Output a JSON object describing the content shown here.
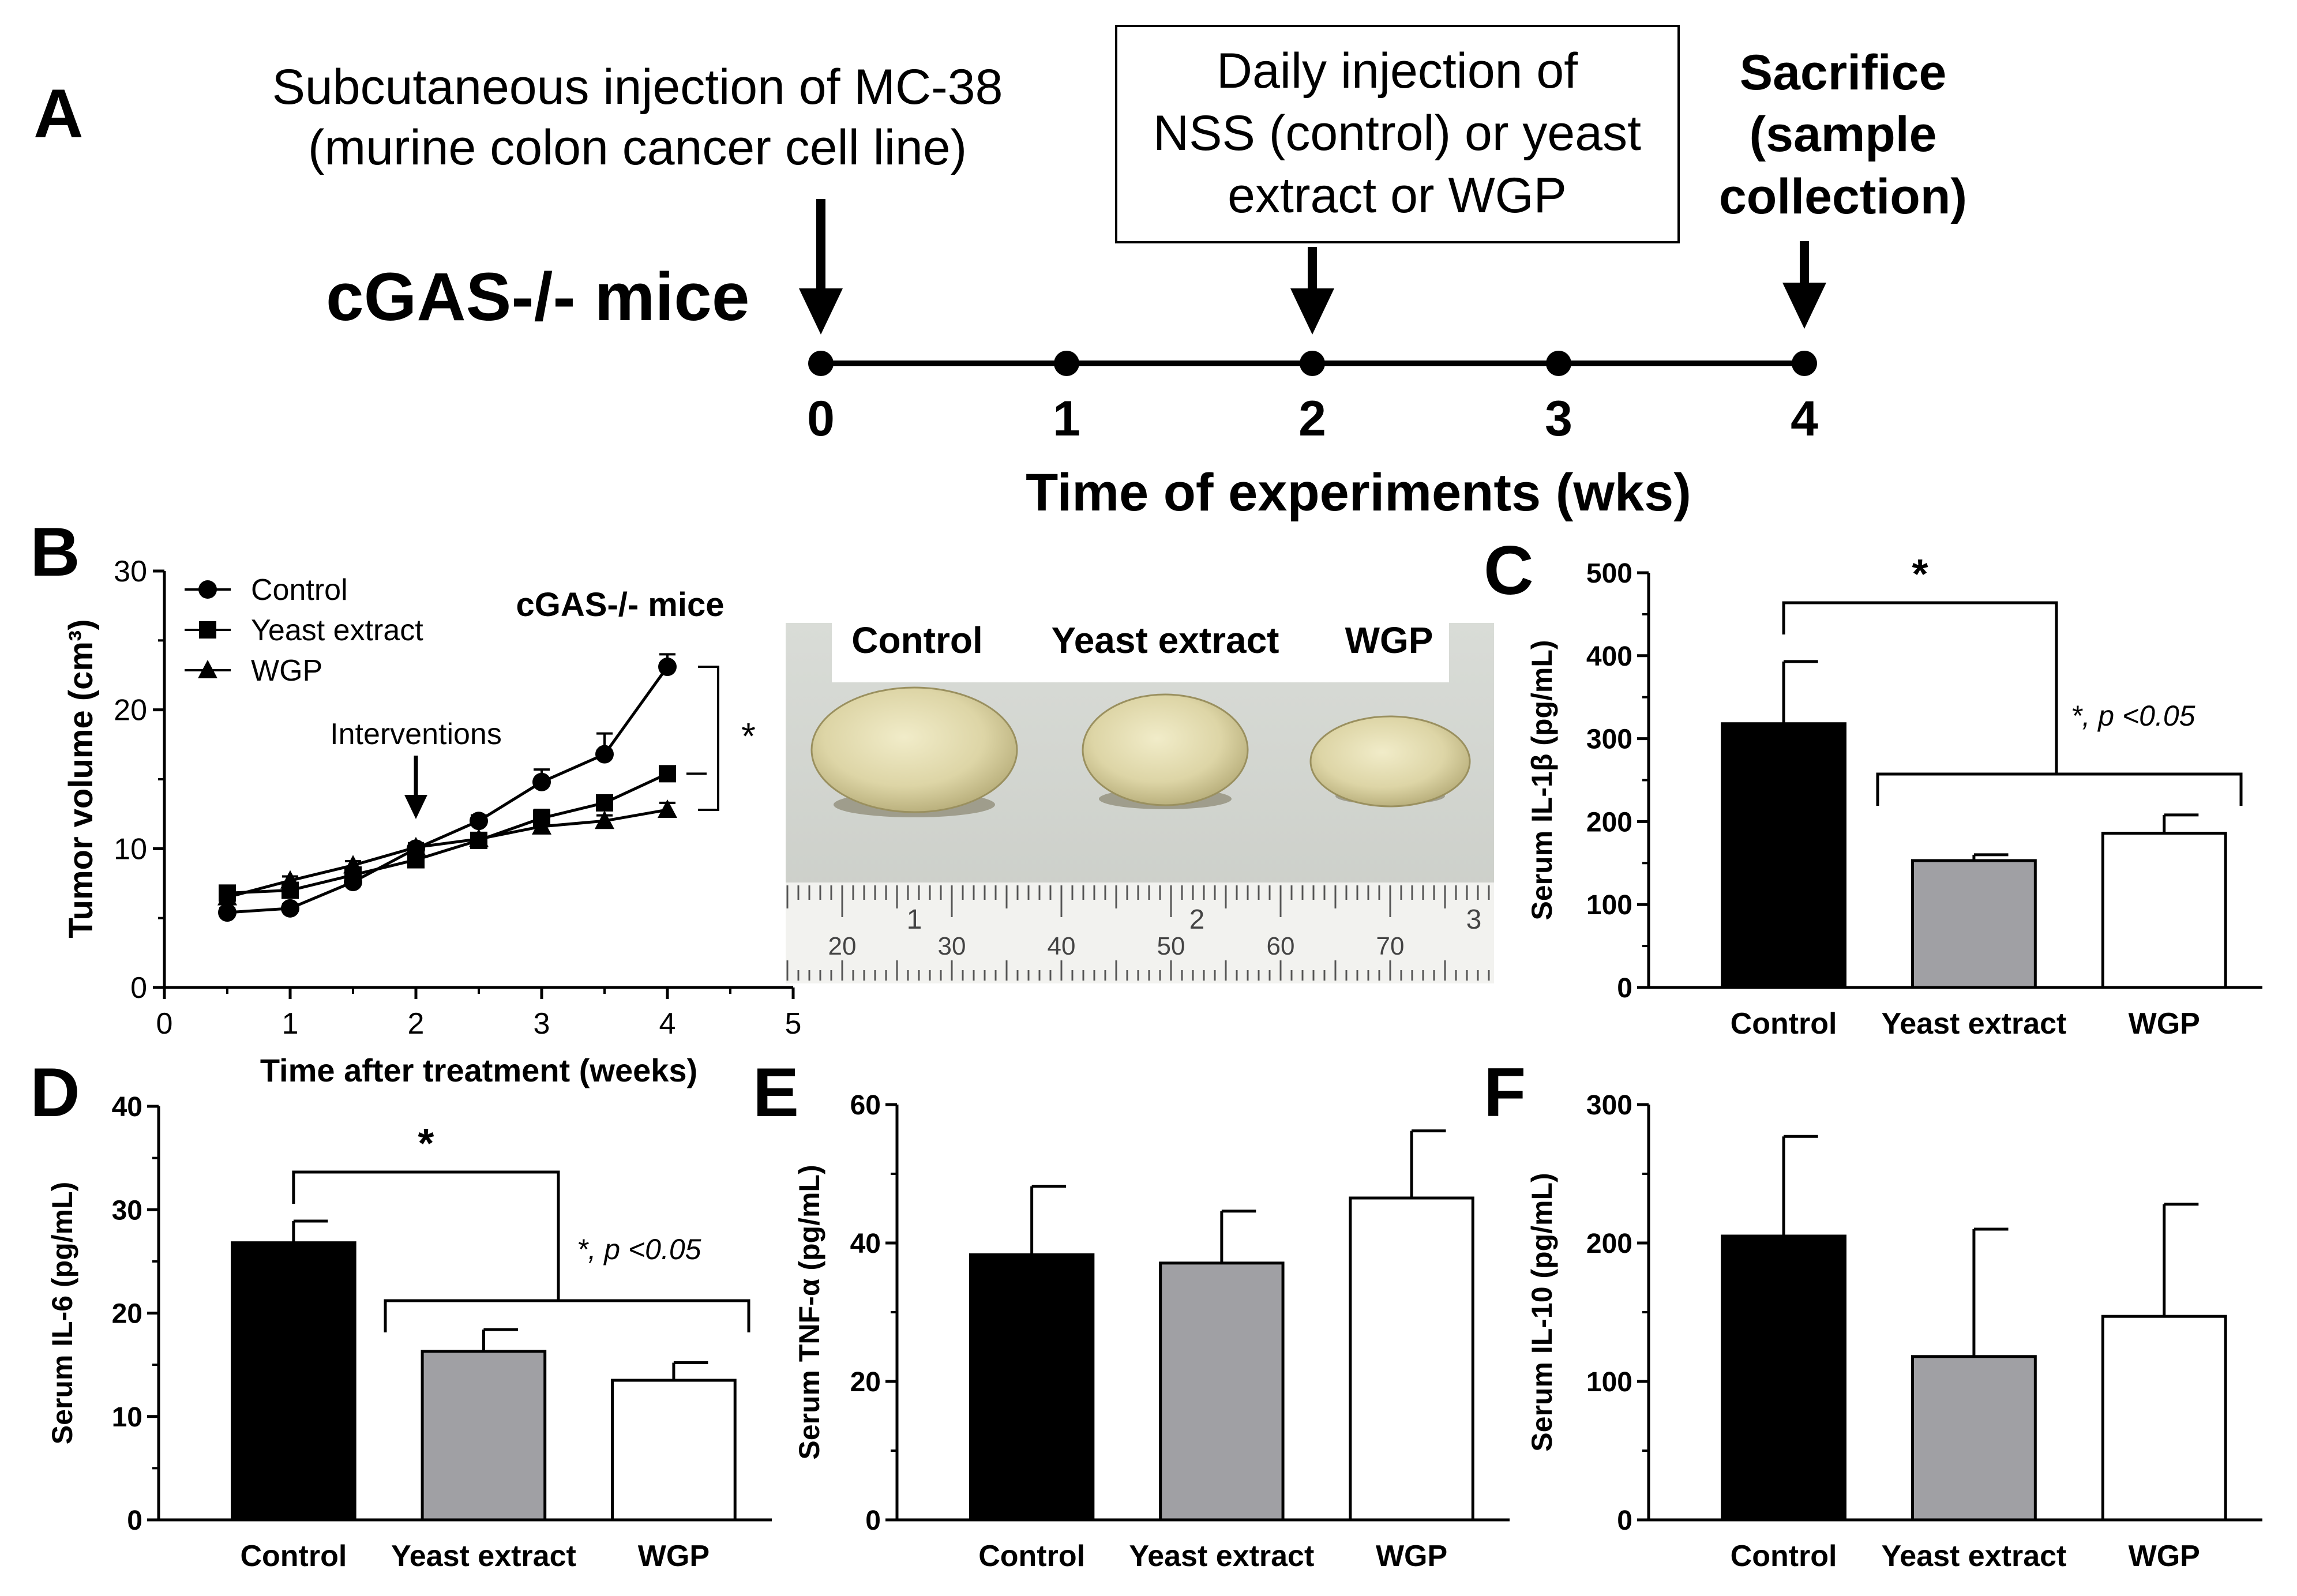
{
  "panels": {
    "A": "A",
    "B": "B",
    "C": "C",
    "D": "D",
    "E": "E",
    "F": "F"
  },
  "timeline": {
    "mouse_label": "cGAS-/- mice",
    "injection_text": [
      "Subcutaneous injection of MC-38",
      "(murine colon cancer cell line)"
    ],
    "daily_box_text": [
      "Daily injection of",
      "NSS (control) or yeast",
      "extract or WGP"
    ],
    "sacrifice_text": [
      "Sacrifice",
      "(sample",
      "collection)"
    ],
    "ticks": [
      "0",
      "1",
      "2",
      "3",
      "4"
    ],
    "axis_label": "Time of experiments (wks)"
  },
  "photo": {
    "labels": [
      "Control",
      "Yeast extract",
      "WGP"
    ],
    "ruler_numbers": [
      "20",
      "30",
      "40",
      "50",
      "60",
      "70"
    ],
    "ruler_big_digits": [
      "1",
      "2",
      "3"
    ]
  },
  "colors": {
    "control": "#000000",
    "yeast": "#a0a0a4",
    "wgp": "#ffffff"
  },
  "chart_data": [
    {
      "panel": "B",
      "type": "line",
      "title": "cGAS-/- mice",
      "xlabel": "Time after treatment (weeks)",
      "ylabel": "Tumor volume (cm³)",
      "xlim": [
        0,
        5
      ],
      "ylim": [
        0,
        30
      ],
      "xticks": [
        0,
        1,
        2,
        3,
        4,
        5
      ],
      "yticks": [
        0,
        10,
        20,
        30
      ],
      "annotation": "Interventions",
      "annotation_x": 2,
      "significance": "*",
      "series": [
        {
          "name": "Control",
          "marker": "circle",
          "x": [
            0.5,
            1,
            1.5,
            2,
            2.5,
            3,
            3.5,
            4
          ],
          "y": [
            5.4,
            5.7,
            7.6,
            10.0,
            12.0,
            14.8,
            16.8,
            23.1
          ],
          "err": [
            0.3,
            0.3,
            0.4,
            0.3,
            0.4,
            0.9,
            1.5,
            0.9
          ]
        },
        {
          "name": "Yeast extract",
          "marker": "square",
          "x": [
            0.5,
            1,
            1.5,
            2,
            2.5,
            3,
            3.5,
            4
          ],
          "y": [
            6.8,
            7.0,
            8.1,
            9.2,
            10.6,
            12.2,
            13.3,
            15.4
          ],
          "err": [
            0.3,
            0.3,
            0.3,
            0.3,
            0.3,
            0.6,
            0.5,
            0.5
          ]
        },
        {
          "name": "WGP",
          "marker": "triangle",
          "x": [
            0.5,
            1,
            1.5,
            2,
            2.5,
            3,
            3.5,
            4
          ],
          "y": [
            6.5,
            7.7,
            8.8,
            10.1,
            10.7,
            11.6,
            12.0,
            12.8
          ],
          "err": [
            0.3,
            0.3,
            0.3,
            0.3,
            0.3,
            0.5,
            0.4,
            0.5
          ]
        }
      ]
    },
    {
      "panel": "C",
      "type": "bar",
      "ylabel": "Serum IL-1β (pg/mL)",
      "categories": [
        "Control",
        "Yeast extract",
        "WGP"
      ],
      "values": [
        318,
        153,
        186
      ],
      "errors": [
        75,
        7,
        22
      ],
      "ylim": [
        0,
        500
      ],
      "yticks": [
        0,
        100,
        200,
        300,
        400,
        500
      ],
      "sig_star": "*",
      "sig_text": "*, p <0.05"
    },
    {
      "panel": "D",
      "type": "bar",
      "ylabel": "Serum IL-6 (pg/mL)",
      "categories": [
        "Control",
        "Yeast extract",
        "WGP"
      ],
      "values": [
        26.8,
        16.3,
        13.5
      ],
      "errors": [
        2.1,
        2.1,
        1.7
      ],
      "ylim": [
        0,
        40
      ],
      "yticks": [
        0,
        10,
        20,
        30,
        40
      ],
      "sig_star": "*",
      "sig_text": "*, p <0.05"
    },
    {
      "panel": "E",
      "type": "bar",
      "ylabel": "Serum TNF-α (pg/mL)",
      "categories": [
        "Control",
        "Yeast extract",
        "WGP"
      ],
      "values": [
        38.3,
        37.1,
        46.5
      ],
      "errors": [
        9.9,
        7.5,
        9.7
      ],
      "ylim": [
        0,
        60
      ],
      "yticks": [
        0,
        20,
        40,
        60
      ]
    },
    {
      "panel": "F",
      "type": "bar",
      "ylabel": "Serum IL-10 (pg/mL)",
      "categories": [
        "Control",
        "Yeast extract",
        "WGP"
      ],
      "values": [
        205,
        118,
        147
      ],
      "errors": [
        72,
        92,
        81
      ],
      "ylim": [
        0,
        300
      ],
      "yticks": [
        0,
        100,
        200,
        300
      ]
    }
  ]
}
